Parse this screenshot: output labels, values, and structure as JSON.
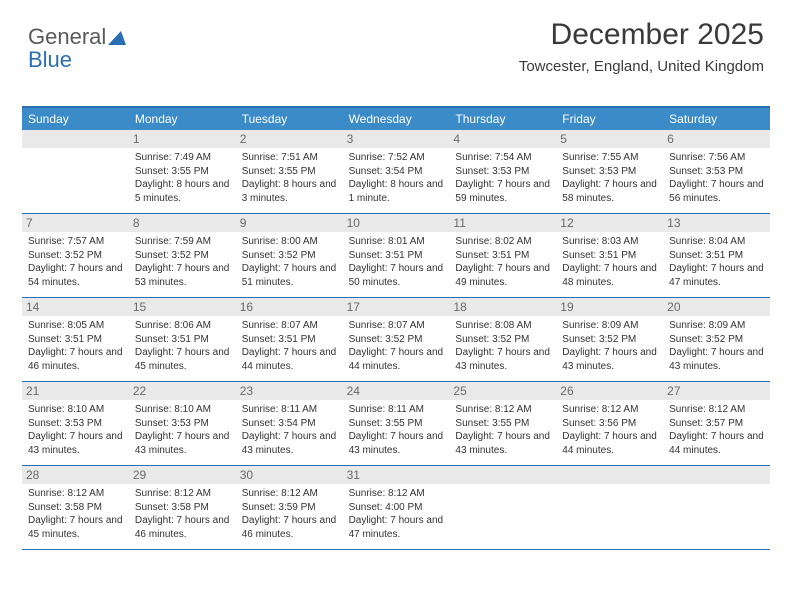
{
  "logo": {
    "text1": "General",
    "text2": "Blue"
  },
  "title": "December 2025",
  "subtitle": "Towcester, England, United Kingdom",
  "colors": {
    "header_bg": "#3b8bc8",
    "header_text": "#ffffff",
    "border": "#2a6fb5",
    "daynum_bg": "#e9e9e9",
    "daynum_text": "#6a6a6a",
    "body_text": "#333333"
  },
  "dayNames": [
    "Sunday",
    "Monday",
    "Tuesday",
    "Wednesday",
    "Thursday",
    "Friday",
    "Saturday"
  ],
  "weeks": [
    [
      null,
      {
        "n": "1",
        "sr": "7:49 AM",
        "ss": "3:55 PM",
        "dl": "8 hours and 5 minutes."
      },
      {
        "n": "2",
        "sr": "7:51 AM",
        "ss": "3:55 PM",
        "dl": "8 hours and 3 minutes."
      },
      {
        "n": "3",
        "sr": "7:52 AM",
        "ss": "3:54 PM",
        "dl": "8 hours and 1 minute."
      },
      {
        "n": "4",
        "sr": "7:54 AM",
        "ss": "3:53 PM",
        "dl": "7 hours and 59 minutes."
      },
      {
        "n": "5",
        "sr": "7:55 AM",
        "ss": "3:53 PM",
        "dl": "7 hours and 58 minutes."
      },
      {
        "n": "6",
        "sr": "7:56 AM",
        "ss": "3:53 PM",
        "dl": "7 hours and 56 minutes."
      }
    ],
    [
      {
        "n": "7",
        "sr": "7:57 AM",
        "ss": "3:52 PM",
        "dl": "7 hours and 54 minutes."
      },
      {
        "n": "8",
        "sr": "7:59 AM",
        "ss": "3:52 PM",
        "dl": "7 hours and 53 minutes."
      },
      {
        "n": "9",
        "sr": "8:00 AM",
        "ss": "3:52 PM",
        "dl": "7 hours and 51 minutes."
      },
      {
        "n": "10",
        "sr": "8:01 AM",
        "ss": "3:51 PM",
        "dl": "7 hours and 50 minutes."
      },
      {
        "n": "11",
        "sr": "8:02 AM",
        "ss": "3:51 PM",
        "dl": "7 hours and 49 minutes."
      },
      {
        "n": "12",
        "sr": "8:03 AM",
        "ss": "3:51 PM",
        "dl": "7 hours and 48 minutes."
      },
      {
        "n": "13",
        "sr": "8:04 AM",
        "ss": "3:51 PM",
        "dl": "7 hours and 47 minutes."
      }
    ],
    [
      {
        "n": "14",
        "sr": "8:05 AM",
        "ss": "3:51 PM",
        "dl": "7 hours and 46 minutes."
      },
      {
        "n": "15",
        "sr": "8:06 AM",
        "ss": "3:51 PM",
        "dl": "7 hours and 45 minutes."
      },
      {
        "n": "16",
        "sr": "8:07 AM",
        "ss": "3:51 PM",
        "dl": "7 hours and 44 minutes."
      },
      {
        "n": "17",
        "sr": "8:07 AM",
        "ss": "3:52 PM",
        "dl": "7 hours and 44 minutes."
      },
      {
        "n": "18",
        "sr": "8:08 AM",
        "ss": "3:52 PM",
        "dl": "7 hours and 43 minutes."
      },
      {
        "n": "19",
        "sr": "8:09 AM",
        "ss": "3:52 PM",
        "dl": "7 hours and 43 minutes."
      },
      {
        "n": "20",
        "sr": "8:09 AM",
        "ss": "3:52 PM",
        "dl": "7 hours and 43 minutes."
      }
    ],
    [
      {
        "n": "21",
        "sr": "8:10 AM",
        "ss": "3:53 PM",
        "dl": "7 hours and 43 minutes."
      },
      {
        "n": "22",
        "sr": "8:10 AM",
        "ss": "3:53 PM",
        "dl": "7 hours and 43 minutes."
      },
      {
        "n": "23",
        "sr": "8:11 AM",
        "ss": "3:54 PM",
        "dl": "7 hours and 43 minutes."
      },
      {
        "n": "24",
        "sr": "8:11 AM",
        "ss": "3:55 PM",
        "dl": "7 hours and 43 minutes."
      },
      {
        "n": "25",
        "sr": "8:12 AM",
        "ss": "3:55 PM",
        "dl": "7 hours and 43 minutes."
      },
      {
        "n": "26",
        "sr": "8:12 AM",
        "ss": "3:56 PM",
        "dl": "7 hours and 44 minutes."
      },
      {
        "n": "27",
        "sr": "8:12 AM",
        "ss": "3:57 PM",
        "dl": "7 hours and 44 minutes."
      }
    ],
    [
      {
        "n": "28",
        "sr": "8:12 AM",
        "ss": "3:58 PM",
        "dl": "7 hours and 45 minutes."
      },
      {
        "n": "29",
        "sr": "8:12 AM",
        "ss": "3:58 PM",
        "dl": "7 hours and 46 minutes."
      },
      {
        "n": "30",
        "sr": "8:12 AM",
        "ss": "3:59 PM",
        "dl": "7 hours and 46 minutes."
      },
      {
        "n": "31",
        "sr": "8:12 AM",
        "ss": "4:00 PM",
        "dl": "7 hours and 47 minutes."
      },
      null,
      null,
      null
    ]
  ],
  "labels": {
    "sunrise": "Sunrise:",
    "sunset": "Sunset:",
    "daylight": "Daylight:"
  }
}
